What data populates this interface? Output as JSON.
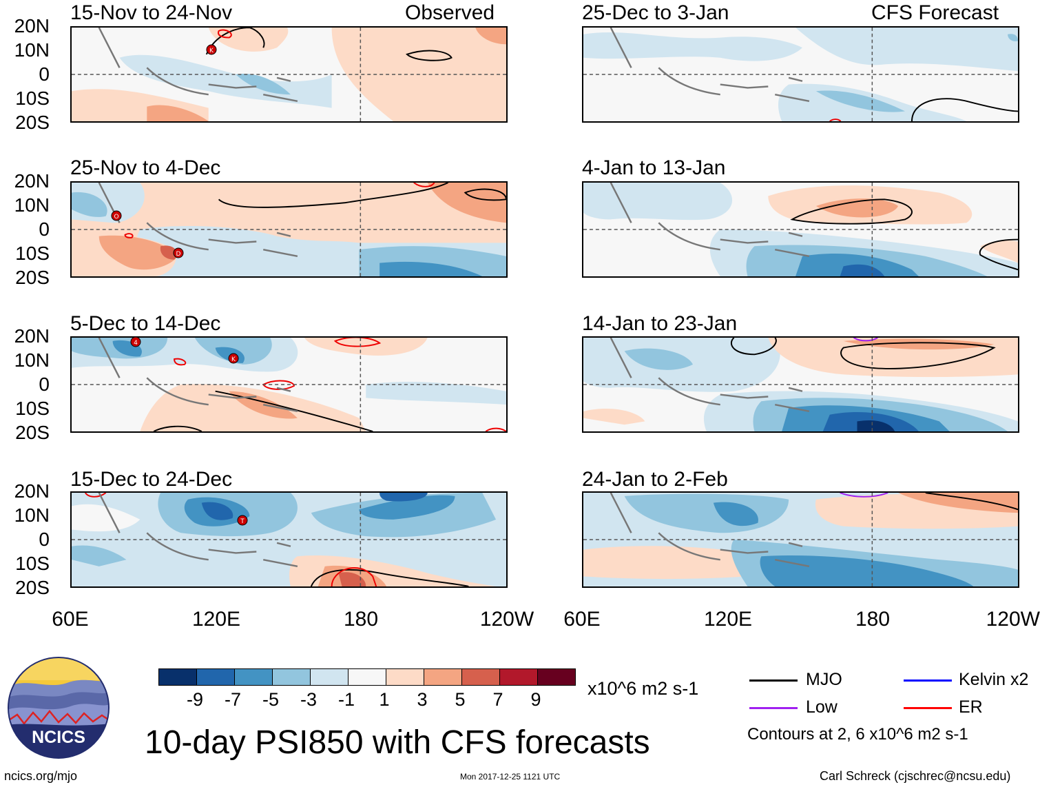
{
  "left_column": {
    "panels": [
      {
        "title": "15-Nov to 24-Nov",
        "tag": "Observed"
      },
      {
        "title": "25-Nov to 4-Dec",
        "tag": ""
      },
      {
        "title": "5-Dec to 14-Dec",
        "tag": ""
      },
      {
        "title": "15-Dec to 24-Dec",
        "tag": ""
      }
    ]
  },
  "right_column": {
    "panels": [
      {
        "title": "25-Dec to 3-Jan",
        "tag": "CFS Forecast"
      },
      {
        "title": "4-Jan to 13-Jan",
        "tag": ""
      },
      {
        "title": "14-Jan to 23-Jan",
        "tag": ""
      },
      {
        "title": "24-Jan to 2-Feb",
        "tag": ""
      }
    ]
  },
  "latitude_labels": [
    "20N",
    "10N",
    "0",
    "10S",
    "20S"
  ],
  "longitude_labels": [
    "60E",
    "120E",
    "180",
    "120W"
  ],
  "colorbar": {
    "colors": [
      "#08306b",
      "#2166ac",
      "#4393c3",
      "#92c5de",
      "#d1e5f0",
      "#f7f7f7",
      "#fddbc7",
      "#f4a582",
      "#d6604d",
      "#b2182b",
      "#67001f"
    ],
    "labels": [
      "-9",
      "-7",
      "-5",
      "-3",
      "-1",
      "1",
      "3",
      "5",
      "7",
      "9"
    ],
    "units": "x10^6 m2 s-1"
  },
  "legend": {
    "items": [
      {
        "label": "MJO",
        "color": "#000000"
      },
      {
        "label": "Kelvin x2",
        "color": "#0000ff"
      },
      {
        "label": "Low",
        "color": "#a020f0"
      },
      {
        "label": "ER",
        "color": "#ff0000"
      }
    ],
    "note": "Contours at 2, 6 x10^6 m2 s-1"
  },
  "logo_text": "NCICS",
  "main_title": "10-day PSI850 with CFS forecasts",
  "footer": {
    "left": "ncics.org/mjo",
    "center": "Mon 2017-12-25 1121 UTC",
    "right": "Carl Schreck (cjschrec@ncsu.edu)"
  },
  "storm_markers": [
    "K",
    "O",
    "D",
    "4",
    "K",
    "T"
  ]
}
